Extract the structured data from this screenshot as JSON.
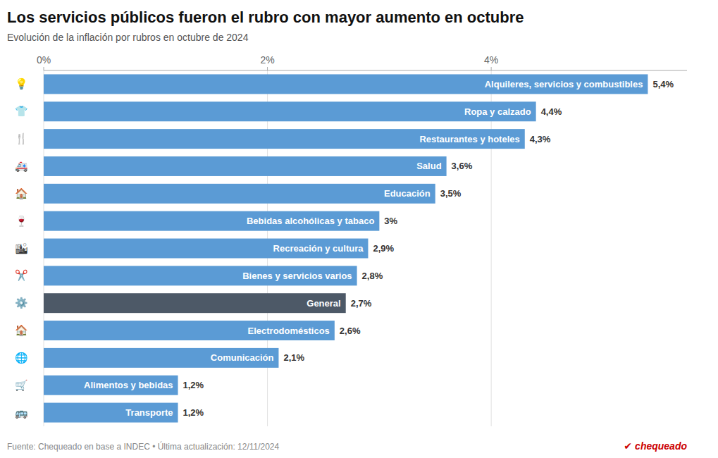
{
  "chart_data": {
    "type": "bar",
    "orientation": "horizontal",
    "title": "Los servicios públicos fueron el rubro con mayor aumento en octubre",
    "subtitle": "Evolución de la inflación por rubros en octubre de 2024",
    "annotations": [
      "Fuente: Chequeado en base a INDEC • Última actualización: 12/11/2024",
      "✔",
      "chequeado"
    ],
    "categories": [
      "Alquileres, servicios y combustibles",
      "Ropa y calzado",
      "Restaurantes y hoteles",
      "Salud",
      "Educación",
      "Bebidas alcohólicas y tabaco",
      "Recreación y cultura",
      "Bienes y servicios varios",
      "General",
      "Electrodomésticos",
      "Comunicación",
      "Alimentos y bebidas",
      "Transporte"
    ],
    "icons": [
      "💡",
      "👕",
      "🍴",
      "🚑",
      "🏠",
      "🍷",
      "🏙",
      "✂️",
      "⚙️",
      "🏠",
      "🌐",
      "🛒",
      "🚌"
    ],
    "values": [
      5.4,
      4.4,
      4.3,
      3.6,
      3.5,
      3.0,
      2.9,
      2.8,
      2.7,
      2.6,
      2.1,
      1.2,
      1.2
    ],
    "value_labels": [
      "5,4%",
      "4,4%",
      "4,3%",
      "3,6%",
      "3,5%",
      "3%",
      "2,9%",
      "2,8%",
      "2,7%",
      "2,6%",
      "2,1%",
      "1,2%",
      "1,2%"
    ],
    "colors": [
      "#5b9bd5",
      "#5b9bd5",
      "#5b9bd5",
      "#5b9bd5",
      "#5b9bd5",
      "#5b9bd5",
      "#5b9bd5",
      "#5b9bd5",
      "#4d5967",
      "#5b9bd5",
      "#5b9bd5",
      "#5b9bd5",
      "#5b9bd5"
    ],
    "xlim": [
      0,
      5.75
    ],
    "xticks": [
      {
        "value": 0,
        "label": "0%"
      },
      {
        "value": 2,
        "label": "2%"
      },
      {
        "value": 4,
        "label": "4%"
      }
    ],
    "grid": true,
    "data_labels": true
  }
}
